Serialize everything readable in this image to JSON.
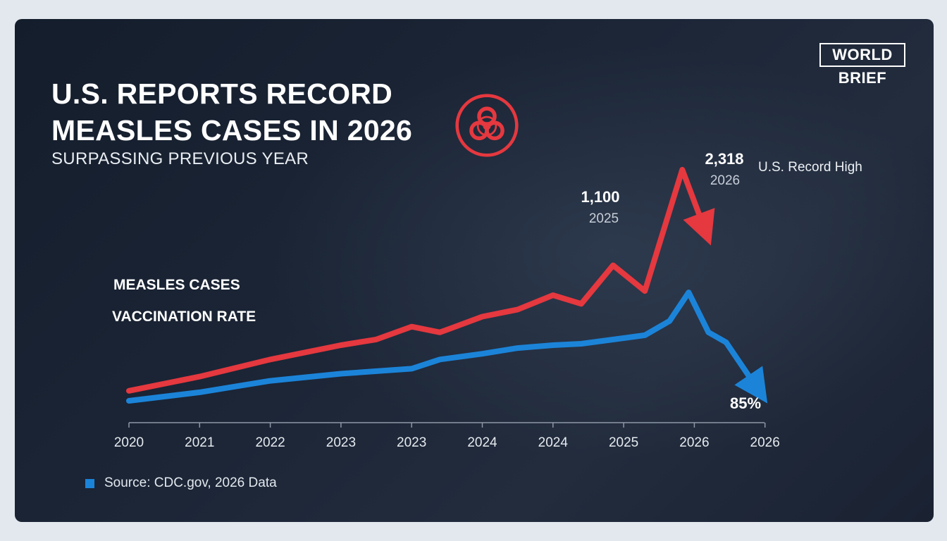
{
  "header": {
    "title_line1": "U.S. REPORTS RECORD",
    "title_line2": "MEASLES CASES IN 2026",
    "subtitle": "SURPASSING PREVIOUS YEAR"
  },
  "logo": {
    "top": "WORLD",
    "bottom": "BRIEF"
  },
  "icons": {
    "hazard": "biohazard-icon",
    "source_marker": "square-marker-icon"
  },
  "colors": {
    "cases": "#e5383f",
    "vaccination": "#1b84d9",
    "background": "#1b2433"
  },
  "source": {
    "text": "Source: CDC.gov, 2026 Data"
  },
  "chart_data": {
    "type": "line",
    "title": "U.S. REPORTS RECORD MEASLES CASES IN 2026",
    "subtitle": "SURPASSING PREVIOUS YEAR",
    "xlabel": "",
    "ylabel": "",
    "grid": false,
    "legend": "left",
    "x_tick_labels": [
      "2020",
      "2021",
      "2022",
      "2023",
      "2023",
      "2024",
      "2024",
      "2025",
      "2026",
      "2026"
    ],
    "series": [
      {
        "name": "MEASLES CASES",
        "color": "#e5383f",
        "points": [
          {
            "x": 0.0,
            "y": 70
          },
          {
            "x": 1.0,
            "y": 170
          },
          {
            "x": 2.0,
            "y": 290
          },
          {
            "x": 3.0,
            "y": 390
          },
          {
            "x": 3.5,
            "y": 430
          },
          {
            "x": 4.0,
            "y": 520
          },
          {
            "x": 4.4,
            "y": 480
          },
          {
            "x": 5.0,
            "y": 590
          },
          {
            "x": 5.5,
            "y": 640
          },
          {
            "x": 6.0,
            "y": 740
          },
          {
            "x": 6.4,
            "y": 680
          },
          {
            "x": 6.85,
            "y": 950
          },
          {
            "x": 7.3,
            "y": 770
          },
          {
            "x": 7.83,
            "y": 1620
          },
          {
            "x": 8.15,
            "y": 1200
          }
        ]
      },
      {
        "name": "VACCINATION RATE",
        "color": "#1b84d9",
        "points": [
          {
            "x": 0.0,
            "y": 0
          },
          {
            "x": 1.0,
            "y": 60
          },
          {
            "x": 2.0,
            "y": 140
          },
          {
            "x": 3.0,
            "y": 190
          },
          {
            "x": 4.0,
            "y": 225
          },
          {
            "x": 4.4,
            "y": 290
          },
          {
            "x": 5.0,
            "y": 330
          },
          {
            "x": 5.5,
            "y": 370
          },
          {
            "x": 6.0,
            "y": 390
          },
          {
            "x": 6.4,
            "y": 400
          },
          {
            "x": 7.3,
            "y": 460
          },
          {
            "x": 7.65,
            "y": 560
          },
          {
            "x": 7.92,
            "y": 760
          },
          {
            "x": 8.2,
            "y": 480
          },
          {
            "x": 8.45,
            "y": 410
          },
          {
            "x": 8.9,
            "y": 80
          }
        ]
      }
    ],
    "annotations": [
      {
        "value": "1,100",
        "year": "2025"
      },
      {
        "value": "2,318",
        "year": "2026",
        "note": "U.S. Record High"
      },
      {
        "value": "85%"
      }
    ]
  }
}
